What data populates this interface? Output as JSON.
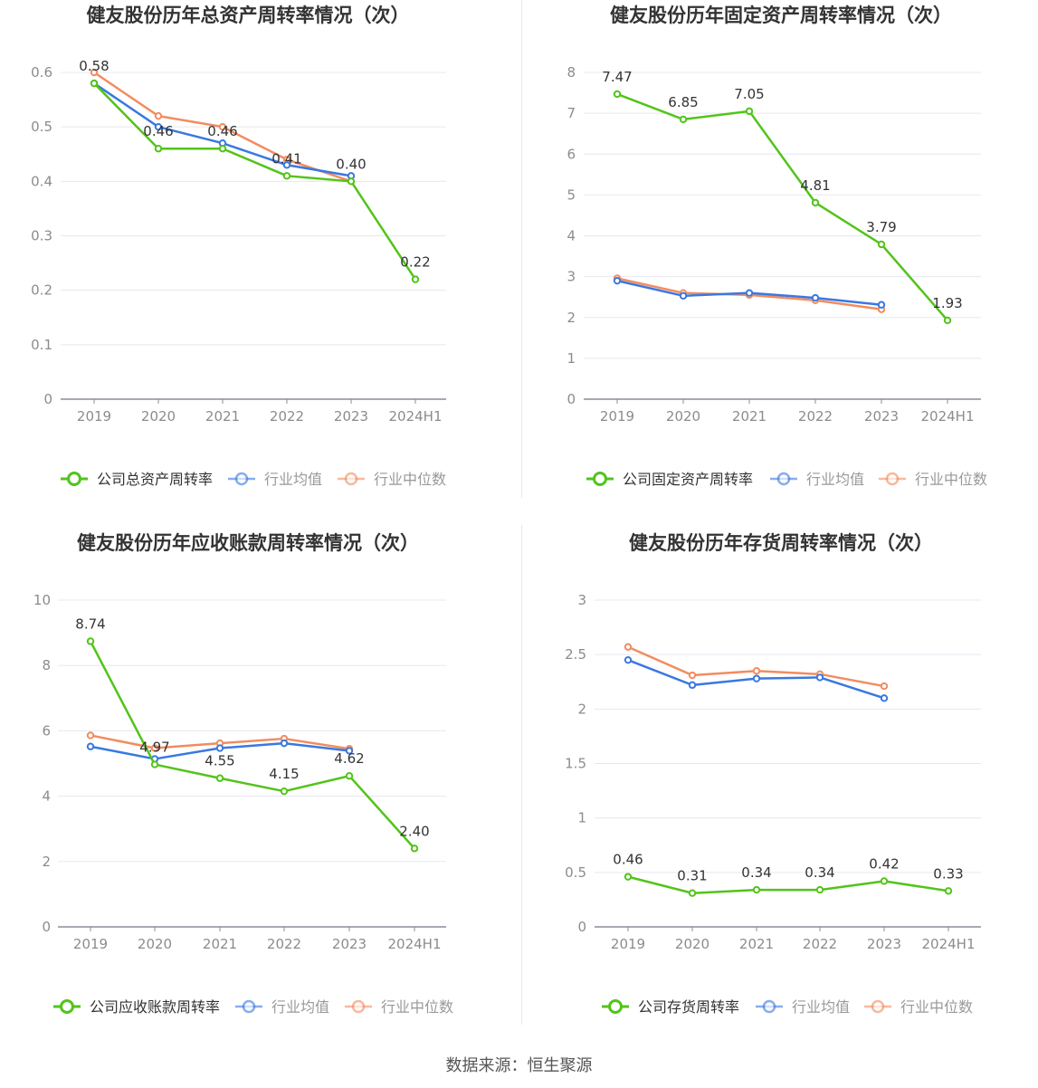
{
  "source": "数据来源：恒生聚源",
  "colors": {
    "company": "#52c41a",
    "avg": "#3a78e0",
    "median": "#f28c5f",
    "grid": "#e6e8f0",
    "axis": "#8c8c9a",
    "tick": "#8c8c8c",
    "title": "#333333",
    "label": "#333333"
  },
  "chart_data": [
    {
      "type": "line",
      "title": "健友股份历年总资产周转率情况（次）",
      "categories": [
        "2019",
        "2020",
        "2021",
        "2022",
        "2023",
        "2024H1"
      ],
      "yticks": [
        "0",
        "0.1",
        "0.2",
        "0.3",
        "0.4",
        "0.5",
        "0.6"
      ],
      "ylim": [
        0,
        0.6
      ],
      "series": [
        {
          "name": "公司总资产周转率",
          "key": "company",
          "values": [
            0.58,
            0.46,
            0.46,
            0.41,
            0.4,
            0.22
          ],
          "labels": [
            "0.58",
            "0.46",
            "0.46",
            "0.41",
            "0.40",
            "0.22"
          ]
        },
        {
          "name": "行业均值",
          "key": "avg",
          "values": [
            0.58,
            0.5,
            0.47,
            0.43,
            0.41,
            null
          ]
        },
        {
          "name": "行业中位数",
          "key": "median",
          "values": [
            0.6,
            0.52,
            0.5,
            0.44,
            0.4,
            null
          ]
        }
      ]
    },
    {
      "type": "line",
      "title": "健友股份历年固定资产周转率情况（次）",
      "categories": [
        "2019",
        "2020",
        "2021",
        "2022",
        "2023",
        "2024H1"
      ],
      "yticks": [
        "0",
        "1",
        "2",
        "3",
        "4",
        "5",
        "6",
        "7",
        "8"
      ],
      "ylim": [
        0,
        8
      ],
      "series": [
        {
          "name": "公司固定资产周转率",
          "key": "company",
          "values": [
            7.47,
            6.85,
            7.05,
            4.81,
            3.79,
            1.93
          ],
          "labels": [
            "7.47",
            "6.85",
            "7.05",
            "4.81",
            "3.79",
            "1.93"
          ]
        },
        {
          "name": "行业均值",
          "key": "avg",
          "values": [
            2.9,
            2.53,
            2.6,
            2.48,
            2.31,
            null
          ]
        },
        {
          "name": "行业中位数",
          "key": "median",
          "values": [
            2.96,
            2.6,
            2.55,
            2.42,
            2.2,
            null
          ]
        }
      ]
    },
    {
      "type": "line",
      "title": "健友股份历年应收账款周转率情况（次）",
      "categories": [
        "2019",
        "2020",
        "2021",
        "2022",
        "2023",
        "2024H1"
      ],
      "yticks": [
        "0",
        "2",
        "4",
        "6",
        "8",
        "10"
      ],
      "ylim": [
        0,
        10
      ],
      "series": [
        {
          "name": "公司应收账款周转率",
          "key": "company",
          "values": [
            8.74,
            4.97,
            4.55,
            4.15,
            4.62,
            2.4
          ],
          "labels": [
            "8.74",
            "4.97",
            "4.55",
            "4.15",
            "4.62",
            "2.40"
          ]
        },
        {
          "name": "行业均值",
          "key": "avg",
          "values": [
            5.52,
            5.14,
            5.47,
            5.62,
            5.39,
            null
          ]
        },
        {
          "name": "行业中位数",
          "key": "median",
          "values": [
            5.86,
            5.47,
            5.62,
            5.76,
            5.45,
            null
          ]
        }
      ]
    },
    {
      "type": "line",
      "title": "健友股份历年存货周转率情况（次）",
      "categories": [
        "2019",
        "2020",
        "2021",
        "2022",
        "2023",
        "2024H1"
      ],
      "yticks": [
        "0",
        "0.5",
        "1",
        "1.5",
        "2",
        "2.5",
        "3"
      ],
      "ylim": [
        0,
        3
      ],
      "series": [
        {
          "name": "公司存货周转率",
          "key": "company",
          "values": [
            0.46,
            0.31,
            0.34,
            0.34,
            0.42,
            0.33
          ],
          "labels": [
            "0.46",
            "0.31",
            "0.34",
            "0.34",
            "0.42",
            "0.33"
          ]
        },
        {
          "name": "行业均值",
          "key": "avg",
          "values": [
            2.45,
            2.22,
            2.28,
            2.29,
            2.1,
            null
          ]
        },
        {
          "name": "行业中位数",
          "key": "median",
          "values": [
            2.57,
            2.31,
            2.35,
            2.32,
            2.21,
            null
          ]
        }
      ]
    }
  ]
}
